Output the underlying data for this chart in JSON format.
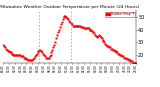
{
  "title": "Milwaukee Weather Outdoor Temperature per Minute (24 Hours)",
  "line_color": "#ff0000",
  "bg_color": "#ffffff",
  "ylim": [
    14,
    55
  ],
  "yticks": [
    20,
    30,
    40,
    50
  ],
  "ylabel_fontsize": 3.5,
  "title_fontsize": 3.2,
  "vline_x": [
    0.265,
    0.51
  ],
  "legend_label": "Outdoor Temp °F",
  "num_xticks": 24,
  "data_y": [
    28,
    27,
    26,
    25,
    24,
    23,
    23,
    22,
    22,
    21,
    21,
    20,
    20,
    20,
    20,
    20,
    20,
    20,
    20,
    19,
    19,
    19,
    18,
    18,
    18,
    17,
    17,
    16,
    16,
    16,
    16,
    16,
    17,
    18,
    19,
    20,
    21,
    22,
    23,
    24,
    24,
    23,
    22,
    21,
    20,
    19,
    18,
    18,
    18,
    18,
    19,
    20,
    22,
    24,
    26,
    28,
    30,
    33,
    36,
    38,
    40,
    42,
    44,
    46,
    48,
    50,
    51,
    51,
    50,
    49,
    48,
    47,
    46,
    45,
    44,
    43,
    43,
    43,
    43,
    43,
    43,
    43,
    43,
    43,
    42,
    42,
    42,
    41,
    41,
    41,
    41,
    41,
    41,
    40,
    40,
    40,
    39,
    38,
    37,
    36,
    35,
    34,
    35,
    36,
    35,
    34,
    33,
    32,
    31,
    30,
    29,
    28,
    27,
    27,
    26,
    26,
    25,
    25,
    24,
    24,
    23,
    23,
    22,
    22,
    21,
    21,
    20,
    20,
    19,
    19,
    18,
    18,
    18,
    17,
    17,
    16,
    16,
    16,
    15,
    15,
    14,
    14,
    14,
    14
  ]
}
